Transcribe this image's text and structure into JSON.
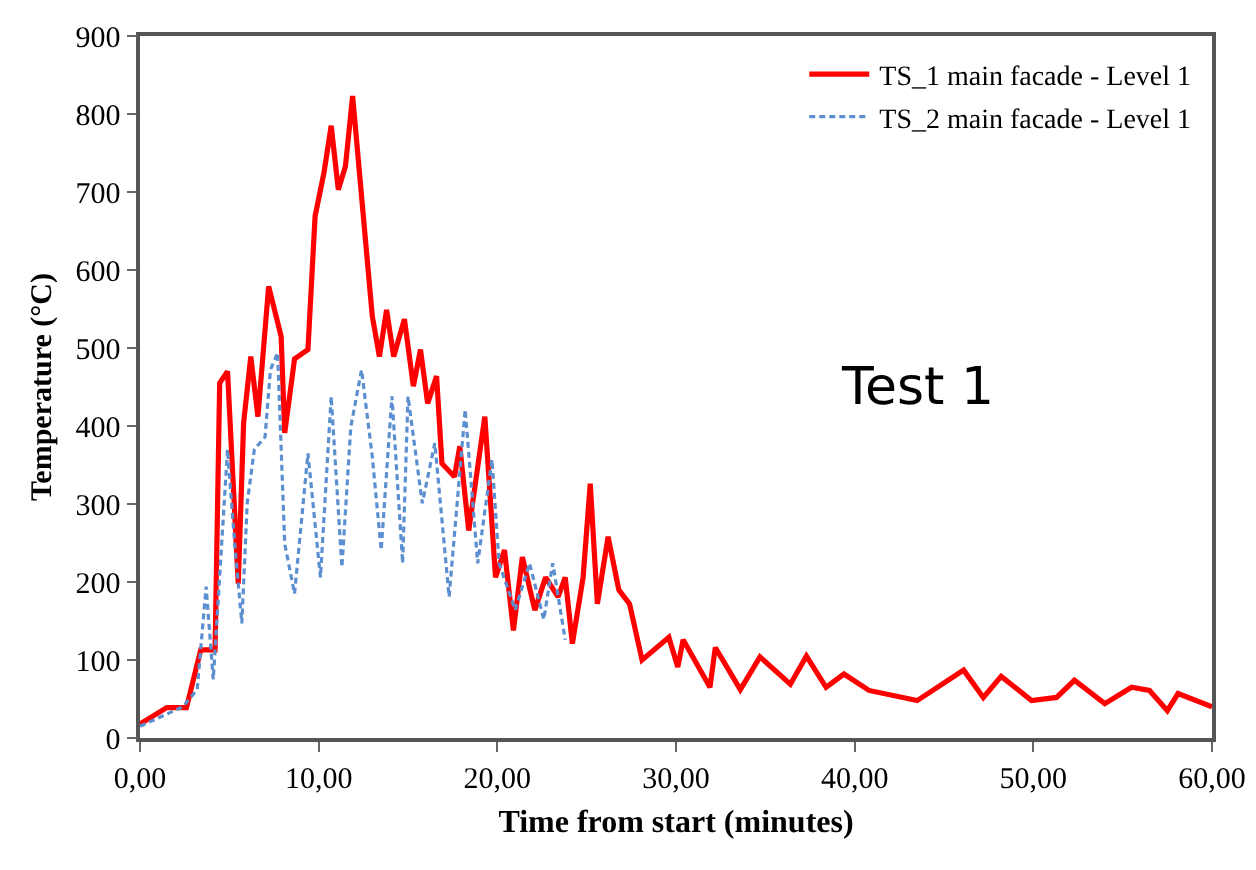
{
  "chart_data": {
    "type": "line",
    "xlabel": "Time from start (minutes)",
    "ylabel": "Temperature (°C)",
    "xlim": [
      0,
      60
    ],
    "ylim": [
      0,
      900
    ],
    "xticks": [
      {
        "value": 0,
        "label": "0,00"
      },
      {
        "value": 10,
        "label": "10,00"
      },
      {
        "value": 20,
        "label": "20,00"
      },
      {
        "value": 30,
        "label": "30,00"
      },
      {
        "value": 40,
        "label": "40,00"
      },
      {
        "value": 50,
        "label": "50,00"
      },
      {
        "value": 60,
        "label": "60,00"
      }
    ],
    "yticks": [
      0,
      100,
      200,
      300,
      400,
      500,
      600,
      700,
      800,
      900
    ],
    "grid": false,
    "legend": "top right",
    "annotations": [
      "Test 1"
    ],
    "series": [
      {
        "name": "TS_1 main facade - Level 1",
        "color": "#ff0000",
        "line_style": "solid",
        "x": [
          0,
          1.5,
          2.6,
          3.4,
          4.2,
          4.46,
          4.9,
          5.5,
          5.8,
          6.2,
          6.6,
          7.2,
          7.9,
          8.1,
          8.65,
          9.4,
          9.8,
          10.3,
          10.7,
          11.1,
          11.5,
          11.9,
          13,
          13.4,
          13.8,
          14.2,
          14.8,
          15.3,
          15.7,
          16.1,
          16.6,
          16.9,
          17.6,
          17.9,
          18.4,
          19.3,
          19.9,
          20.4,
          20.9,
          21.4,
          22.1,
          22.7,
          23.4,
          23.8,
          24.2,
          24.8,
          25.2,
          25.6,
          26.2,
          26.8,
          27.4,
          28.1,
          29.6,
          30.1,
          30.4,
          31.9,
          32.2,
          33.6,
          34.7,
          36.4,
          37.3,
          38.4,
          39.4,
          40.8,
          43.5,
          46.1,
          47.2,
          48.2,
          49.9,
          51.3,
          52.3,
          54,
          55.5,
          56.5,
          57.5,
          58.1,
          60
        ],
        "values": [
          18,
          39,
          39,
          113,
          113,
          455,
          470,
          198,
          404,
          489,
          412,
          579,
          515,
          391,
          486,
          498,
          669,
          725,
          785,
          703,
          733,
          823,
          541,
          489,
          549,
          489,
          537,
          451,
          498,
          429,
          464,
          352,
          335,
          374,
          266,
          412,
          206,
          241,
          138,
          232,
          164,
          206,
          181,
          206,
          121,
          206,
          326,
          172,
          258,
          190,
          172,
          100,
          129,
          91,
          126,
          65,
          116,
          62,
          104,
          69,
          105,
          65,
          82,
          61,
          48,
          87,
          52,
          79,
          48,
          52,
          74,
          44,
          65,
          61,
          35,
          57,
          40
        ]
      },
      {
        "name": "TS_2 main facade - Level 1",
        "color": "#5b8fd0",
        "line_style": "dashed",
        "x": [
          0,
          2.4,
          3.2,
          3.7,
          4.1,
          4.9,
          5.3,
          5.7,
          6,
          6.4,
          7,
          7.3,
          7.7,
          8.1,
          8.65,
          9.4,
          10.1,
          10.7,
          11.3,
          11.8,
          12.4,
          13,
          13.5,
          14.1,
          14.7,
          15,
          15.8,
          16.5,
          17.3,
          18.2,
          18.9,
          19.7,
          20.1,
          21,
          21.8,
          22.6,
          23.1,
          23.8
        ],
        "values": [
          15,
          40,
          62,
          194,
          75,
          370,
          249,
          147,
          301,
          370,
          386,
          472,
          494,
          249,
          185,
          365,
          206,
          438,
          219,
          399,
          472,
          361,
          241,
          438,
          224,
          438,
          301,
          378,
          181,
          421,
          224,
          357,
          224,
          164,
          224,
          152,
          224,
          126
        ]
      }
    ]
  }
}
